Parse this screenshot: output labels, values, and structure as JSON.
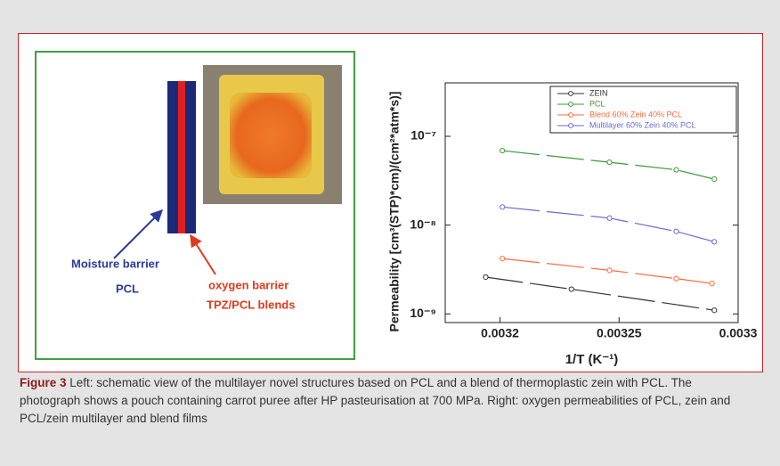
{
  "schematic": {
    "labels": [
      "Moisture barrier",
      "PCL",
      "oxygen barrier",
      "TPZ/PCL blends"
    ]
  },
  "chart_data": {
    "type": "line",
    "xlabel": "1/T (K⁻¹)",
    "ylabel": "Permeability [cm³(STP)*cm)/(cm²*atm*s)]",
    "xlim": [
      0.003177,
      0.0033
    ],
    "ylim": [
      8e-10,
      4e-07
    ],
    "log_y": true,
    "legend_loc": "upper right",
    "xticks": [
      0.0032,
      0.00325,
      0.0033
    ],
    "yticks": [
      {
        "value": 1e-09,
        "label": "10⁻⁹"
      },
      {
        "value": 1e-08,
        "label": "10⁻⁸"
      },
      {
        "value": 1e-07,
        "label": "10⁻⁷"
      }
    ],
    "series": [
      {
        "name": "ZEIN",
        "color": "#333333",
        "x": [
          0.003194,
          0.00323,
          0.00329
        ],
        "values": [
          2.6e-09,
          1.9e-09,
          1.1e-09
        ]
      },
      {
        "name": "PCL",
        "color": "#3c9a3c",
        "x": [
          0.003201,
          0.003246,
          0.003274,
          0.00329
        ],
        "values": [
          6.9e-08,
          5.1e-08,
          4.2e-08,
          3.3e-08
        ]
      },
      {
        "name": "Blend 60% Zein 40% PCL",
        "color": "#ff6a3c",
        "x": [
          0.003201,
          0.003246,
          0.003274,
          0.003289
        ],
        "values": [
          4.2e-09,
          3.1e-09,
          2.5e-09,
          2.2e-09
        ]
      },
      {
        "name": "Multilayer 60% Zein 40% PCL",
        "color": "#6a6ad2",
        "x": [
          0.003201,
          0.003246,
          0.003274,
          0.00329
        ],
        "values": [
          1.6e-08,
          1.2e-08,
          8.5e-09,
          6.5e-09
        ]
      }
    ]
  },
  "caption": {
    "label": "Figure 3",
    "text": "Left: schematic view of the multilayer novel structures based on PCL and a blend of thermoplastic zein with PCL. The photograph shows a pouch containing carrot puree after HP pasteurisation at 700 MPa. Right: oxygen permeabilities of PCL, zein and PCL/zein multilayer and blend films"
  }
}
